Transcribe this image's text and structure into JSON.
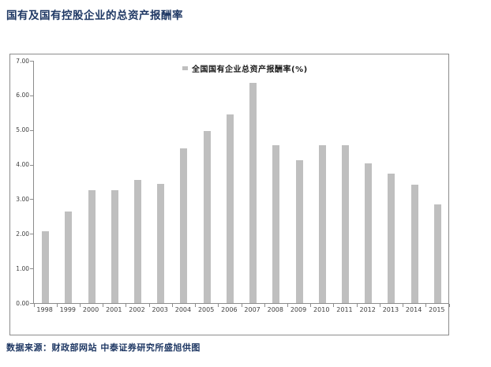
{
  "page": {
    "title": "国有及国有控股企业的总资产报酬率",
    "source_note": "数据来源：财政部网站 中泰证券研究所盛旭供图"
  },
  "colors": {
    "title_text": "#1F3864",
    "source_text": "#1F3864",
    "bar_fill": "#BFBFBF",
    "axis_line": "#8C8C8C",
    "chart_border": "#8C8C8C",
    "tick_label_text": "#404040",
    "legend_text": "#1a1a1a"
  },
  "chart_data": {
    "type": "bar",
    "title": "",
    "legend": [
      {
        "label": "全国国有企业总资产报酬率(%)",
        "marker_color": "#BFBFBF"
      }
    ],
    "legend_position": "top-center",
    "grid": false,
    "categories": [
      "1998",
      "1999",
      "2000",
      "2001",
      "2002",
      "2003",
      "2004",
      "2005",
      "2006",
      "2007",
      "2008",
      "2009",
      "2010",
      "2011",
      "2012",
      "2013",
      "2014",
      "2015"
    ],
    "values": [
      2.08,
      2.65,
      3.27,
      3.26,
      3.55,
      3.45,
      4.46,
      4.96,
      5.46,
      6.37,
      4.55,
      4.13,
      4.55,
      4.55,
      4.04,
      3.74,
      3.43,
      2.86
    ],
    "xlabel": "",
    "ylabel": "",
    "ylim": [
      0,
      7
    ],
    "ytick_labels": [
      "7.00",
      "6.00",
      "5.00",
      "4.00",
      "3.00",
      "2.00",
      "1.00",
      "0.00"
    ]
  }
}
